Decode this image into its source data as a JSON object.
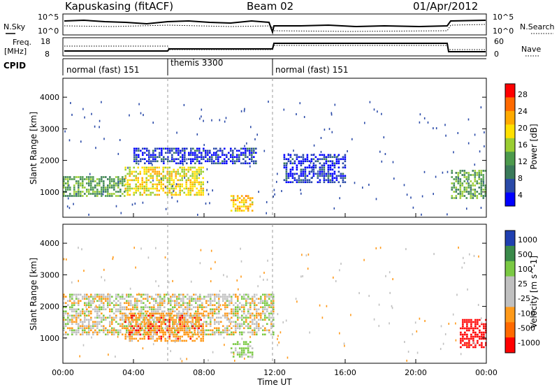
{
  "header": {
    "station": "Kapuskasing (fitACF)",
    "beam": "Beam 02",
    "date": "01/Apr/2012"
  },
  "top_panels": {
    "nsky_label": "N.Sky",
    "nsky_ticks": [
      "10^5",
      "10^0"
    ],
    "nsearch_label": "N.Search",
    "nsearch_ticks": [
      "10^5",
      "10^0"
    ],
    "freq_label_1": "Freq.",
    "freq_label_2": "[MHz]",
    "freq_ticks": [
      "18",
      "8"
    ],
    "nave_label": "Nave",
    "nave_ticks": [
      "60",
      "0"
    ],
    "cpid_label": "CPID",
    "cpid_segments": [
      {
        "label": "normal (fast) 151",
        "start": 0,
        "end": 6
      },
      {
        "label": "themis 3300",
        "start": 6,
        "end": 12
      },
      {
        "label": "normal (fast) 151",
        "start": 12,
        "end": 24
      }
    ]
  },
  "chart_data": [
    {
      "type": "heatmap",
      "title": "",
      "ylabel": "Slant Range [km]",
      "xlabel": "Time UT",
      "xlim": [
        0,
        24
      ],
      "ylim": [
        200,
        4600
      ],
      "x_ticks": [
        "00:00",
        "04:00",
        "08:00",
        "12:00",
        "16:00",
        "20:00",
        "00:00"
      ],
      "y_ticks": [
        "1000",
        "2000",
        "3000",
        "4000"
      ],
      "colorbar_label": "Power [dB]",
      "colorbar_ticks": [
        "28",
        "24",
        "20",
        "16",
        "12",
        "8",
        "4"
      ],
      "colorbar_colors": [
        "#ff0000",
        "#ff6a00",
        "#ffaa00",
        "#ffe000",
        "#9acd32",
        "#4c9a4c",
        "#3a7a5a",
        "#2a4aa8",
        "#0000ff"
      ],
      "features": [
        {
          "desc": "band",
          "t": [
            0,
            3.5
          ],
          "range": [
            900,
            1500
          ],
          "value": 14
        },
        {
          "desc": "band",
          "t": [
            3.5,
            8
          ],
          "range": [
            900,
            1800
          ],
          "value": 20
        },
        {
          "desc": "band",
          "t": [
            4,
            11
          ],
          "range": [
            1900,
            2400
          ],
          "value": 6
        },
        {
          "desc": "band",
          "t": [
            9.5,
            10.8
          ],
          "range": [
            400,
            900
          ],
          "value": 22
        },
        {
          "desc": "band",
          "t": [
            12.5,
            16
          ],
          "range": [
            1300,
            2200
          ],
          "value": 6
        },
        {
          "desc": "band",
          "t": [
            22,
            24
          ],
          "range": [
            800,
            1700
          ],
          "value": 14
        }
      ]
    },
    {
      "type": "heatmap",
      "title": "",
      "ylabel": "Slant Range [km]",
      "xlabel": "Time UT",
      "xlim": [
        0,
        24
      ],
      "ylim": [
        200,
        4600
      ],
      "x_ticks": [
        "00:00",
        "04:00",
        "08:00",
        "12:00",
        "16:00",
        "20:00",
        "00:00"
      ],
      "y_ticks": [
        "1000",
        "2000",
        "3000",
        "4000"
      ],
      "colorbar_label": "Velocity [m s^-1]",
      "colorbar_ticks": [
        "1000",
        "500",
        "100",
        "25",
        "-25",
        "-100",
        "-500",
        "-1000"
      ],
      "colorbar_colors": [
        "#1f3fb0",
        "#3a8a4a",
        "#7ac943",
        "#c0c0c0",
        "#c0c0c0",
        "#ff9a1a",
        "#ff6a00",
        "#ff0000"
      ],
      "features": [
        {
          "desc": "ground scatter",
          "t": [
            0,
            12
          ],
          "range": [
            1100,
            2400
          ],
          "value": 0
        },
        {
          "desc": "band",
          "t": [
            3.5,
            8
          ],
          "range": [
            900,
            1800
          ],
          "value": -200
        },
        {
          "desc": "band",
          "t": [
            9.5,
            10.8
          ],
          "range": [
            400,
            900
          ],
          "value": 150
        },
        {
          "desc": "band",
          "t": [
            22.5,
            24
          ],
          "range": [
            700,
            1600
          ],
          "value": -600
        }
      ]
    }
  ]
}
